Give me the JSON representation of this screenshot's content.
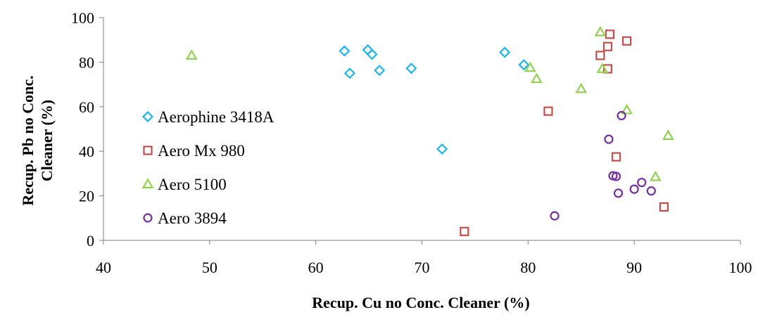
{
  "chart_data": {
    "type": "scatter",
    "title": "",
    "xlabel": "Recup. Cu no Conc. Cleaner (%)",
    "ylabel_lines": [
      "Recup. Pb no Conc.",
      "Cleaner (%)"
    ],
    "xlim": [
      40,
      100
    ],
    "ylim": [
      0,
      100
    ],
    "x_ticks": [
      40,
      50,
      60,
      70,
      80,
      90,
      100
    ],
    "y_ticks": [
      0,
      20,
      40,
      60,
      80,
      100
    ],
    "grid": false,
    "legend_position": "left",
    "series": [
      {
        "name": "Aerophine 3418A",
        "marker": "diamond",
        "color": "#1fb4e9",
        "points": [
          [
            62.7,
            85
          ],
          [
            63.2,
            75
          ],
          [
            64.9,
            85.5
          ],
          [
            65.3,
            83.5
          ],
          [
            66.0,
            76.3
          ],
          [
            69.0,
            77.2
          ],
          [
            71.9,
            41
          ],
          [
            77.8,
            84.4
          ],
          [
            79.6,
            78.8
          ]
        ]
      },
      {
        "name": "Aero Mx 980",
        "marker": "square",
        "color": "#c0504d",
        "points": [
          [
            74.0,
            4
          ],
          [
            81.9,
            58
          ],
          [
            86.8,
            83
          ],
          [
            87.5,
            77
          ],
          [
            87.5,
            87
          ],
          [
            87.7,
            92.5
          ],
          [
            88.3,
            37.5
          ],
          [
            89.3,
            89.5
          ],
          [
            92.8,
            15
          ]
        ]
      },
      {
        "name": "Aero 5100",
        "marker": "triangle",
        "color": "#92d050",
        "points": [
          [
            48.3,
            83
          ],
          [
            80.2,
            77.5
          ],
          [
            80.8,
            72.5
          ],
          [
            85.0,
            68
          ],
          [
            86.8,
            93.5
          ],
          [
            87.0,
            77
          ],
          [
            89.3,
            58.5
          ],
          [
            92.0,
            28.5
          ],
          [
            93.2,
            47
          ]
        ]
      },
      {
        "name": "Aero 3894",
        "marker": "circle",
        "color": "#7030a0",
        "points": [
          [
            82.5,
            11
          ],
          [
            87.6,
            45.4
          ],
          [
            88.0,
            29
          ],
          [
            88.3,
            28.7
          ],
          [
            88.5,
            21.2
          ],
          [
            88.8,
            56
          ],
          [
            90.0,
            23
          ],
          [
            90.7,
            26
          ],
          [
            91.6,
            22.2
          ]
        ]
      }
    ]
  }
}
